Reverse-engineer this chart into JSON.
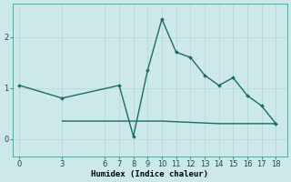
{
  "xlabel": "Humidex (Indice chaleur)",
  "ylabel": "",
  "bg_color": "#cce8e8",
  "grid_color": "#b0d4d4",
  "line_color": "#1a6b6b",
  "line1_x": [
    0,
    3,
    7,
    8,
    9,
    10,
    11,
    12,
    13,
    14,
    15,
    16,
    17,
    18
  ],
  "line1_y": [
    1.05,
    0.8,
    1.05,
    0.05,
    1.35,
    2.35,
    1.7,
    1.6,
    1.25,
    1.05,
    1.2,
    0.85,
    0.65,
    0.3
  ],
  "line2_x": [
    3,
    8,
    9,
    10,
    14,
    16,
    18
  ],
  "line2_y": [
    0.35,
    0.35,
    0.35,
    0.35,
    0.3,
    0.3,
    0.3
  ],
  "xlim": [
    -0.5,
    18.8
  ],
  "ylim": [
    -0.35,
    2.65
  ],
  "yticks": [
    0,
    1,
    2
  ],
  "xticks": [
    0,
    3,
    6,
    7,
    8,
    9,
    10,
    11,
    12,
    13,
    14,
    15,
    16,
    17,
    18
  ],
  "axis_fontsize": 6.5,
  "tick_fontsize": 6.0
}
